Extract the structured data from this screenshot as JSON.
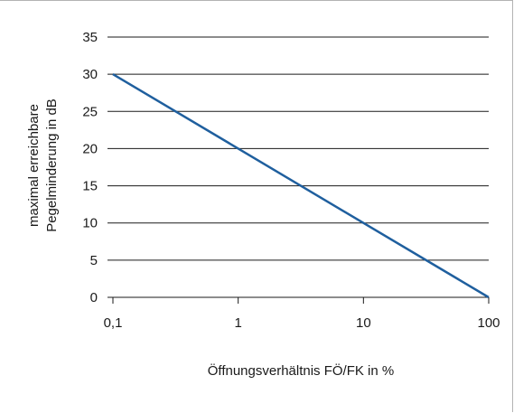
{
  "chart_data": {
    "type": "line",
    "xlabel": "Öffnungsverhältnis FÖ/FK in %",
    "ylabel_lines": [
      "maximal erreichbare",
      "Pegelminderung in dB"
    ],
    "x_scale": "log",
    "xlim": [
      0.1,
      100
    ],
    "ylim": [
      0,
      35
    ],
    "x_ticks": [
      "0,1",
      "1",
      "10",
      "100"
    ],
    "x_tick_values": [
      0.1,
      1,
      10,
      100
    ],
    "y_ticks": [
      "0",
      "5",
      "10",
      "15",
      "20",
      "25",
      "30",
      "35"
    ],
    "y_tick_values": [
      0,
      5,
      10,
      15,
      20,
      25,
      30,
      35
    ],
    "grid": "horizontal",
    "series": [
      {
        "x": [
          0.1,
          1,
          10,
          100
        ],
        "y": [
          30,
          20,
          10,
          0
        ],
        "color": "#1f5f9e"
      }
    ],
    "colors": {
      "line": "#1f5f9e",
      "grid": "#1a1a1a",
      "text": "#1a1a1a"
    }
  }
}
